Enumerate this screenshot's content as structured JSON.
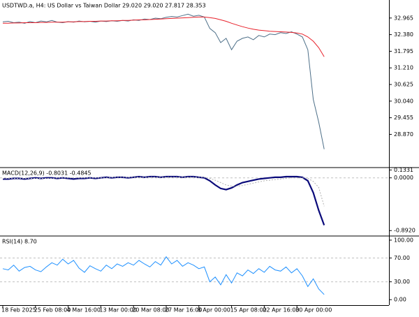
{
  "chart_data": [
    {
      "type": "line",
      "title": "USDTWD.a, H4:  US Dollar vs Taiwan Dollar  29.020 29.020 27.817 28.353",
      "ylim": [
        27.75,
        33.55
      ],
      "yticks": [
        32.965,
        {
          "value": 32.38,
          "label": "32.380"
        },
        31.795,
        {
          "value": 31.21,
          "label": "31.210"
        },
        30.625,
        {
          "value": 30.04,
          "label": "30.040"
        },
        29.455,
        {
          "value": 28.87,
          "label": "28.870"
        }
      ],
      "series": [
        {
          "color": "#4d6f88",
          "values": [
            32.83,
            32.85,
            32.8,
            32.82,
            32.78,
            32.84,
            32.8,
            32.86,
            32.83,
            32.88,
            32.82,
            32.8,
            32.84,
            32.82,
            32.86,
            32.83,
            32.85,
            32.82,
            32.86,
            32.84,
            32.87,
            32.85,
            32.88,
            32.86,
            32.9,
            32.88,
            32.93,
            32.91,
            32.96,
            32.94,
            32.99,
            33.02,
            33.0,
            33.05,
            33.1,
            33.03,
            33.06,
            33.0,
            32.6,
            32.45,
            32.1,
            32.25,
            31.85,
            32.15,
            32.25,
            32.3,
            32.2,
            32.35,
            32.3,
            32.4,
            32.38,
            32.45,
            32.42,
            32.48,
            32.4,
            32.3,
            31.85,
            30.1,
            29.3,
            28.35
          ]
        },
        {
          "color": "#e8202a",
          "values": [
            32.78,
            32.78,
            32.79,
            32.79,
            32.8,
            32.8,
            32.8,
            32.81,
            32.81,
            32.82,
            32.82,
            32.82,
            32.83,
            32.83,
            32.84,
            32.84,
            32.85,
            32.85,
            32.86,
            32.86,
            32.87,
            32.87,
            32.88,
            32.88,
            32.89,
            32.9,
            32.9,
            32.91,
            32.92,
            32.93,
            32.94,
            32.95,
            32.96,
            32.97,
            32.98,
            32.99,
            33.0,
            33.0,
            32.98,
            32.95,
            32.9,
            32.85,
            32.78,
            32.72,
            32.66,
            32.61,
            32.57,
            32.54,
            32.52,
            32.5,
            32.49,
            32.48,
            32.47,
            32.46,
            32.44,
            32.4,
            32.3,
            32.15,
            31.92,
            31.6
          ]
        }
      ]
    },
    {
      "type": "line",
      "title": "MACD(12,26,9) -0.8031 -0.4845",
      "ylim": [
        -0.96,
        0.15
      ],
      "yticks": [
        0.1331,
        {
          "value": 0,
          "label": "0.0000"
        },
        {
          "value": -0.892,
          "label": "-0.8920"
        }
      ],
      "levels": [
        0
      ],
      "series": [
        {
          "color": "#0a0a7a",
          "width": 2.2,
          "values": [
            -0.02,
            -0.02,
            -0.01,
            -0.01,
            -0.02,
            -0.01,
            0.0,
            -0.01,
            0.0,
            0.0,
            -0.01,
            0.0,
            -0.01,
            -0.02,
            -0.01,
            -0.01,
            0.0,
            -0.01,
            0.0,
            0.01,
            0.0,
            0.01,
            0.01,
            0.0,
            0.01,
            0.02,
            0.01,
            0.02,
            0.02,
            0.01,
            0.02,
            0.02,
            0.02,
            0.01,
            0.02,
            0.02,
            0.01,
            0.0,
            -0.05,
            -0.12,
            -0.18,
            -0.2,
            -0.17,
            -0.12,
            -0.08,
            -0.06,
            -0.04,
            -0.02,
            -0.01,
            0.0,
            0.01,
            0.01,
            0.02,
            0.02,
            0.02,
            0.01,
            -0.05,
            -0.25,
            -0.55,
            -0.8
          ]
        },
        {
          "color": "#b0b0b0",
          "style": "dotted",
          "values": [
            -0.01,
            -0.01,
            -0.01,
            -0.01,
            -0.01,
            -0.01,
            -0.01,
            -0.01,
            -0.01,
            -0.01,
            0.0,
            0.0,
            0.0,
            0.0,
            0.0,
            0.0,
            0.0,
            0.0,
            0.0,
            0.0,
            0.01,
            0.01,
            0.01,
            0.01,
            0.01,
            0.01,
            0.01,
            0.01,
            0.01,
            0.01,
            0.01,
            0.01,
            0.01,
            0.01,
            0.01,
            0.01,
            0.01,
            0.01,
            -0.01,
            -0.04,
            -0.08,
            -0.12,
            -0.14,
            -0.14,
            -0.13,
            -0.11,
            -0.09,
            -0.07,
            -0.05,
            -0.04,
            -0.03,
            -0.02,
            -0.01,
            0.0,
            0.0,
            0.0,
            -0.01,
            -0.06,
            -0.16,
            -0.48
          ]
        }
      ]
    },
    {
      "type": "line",
      "title": "RSI(14) 8.70",
      "ylim": [
        -8,
        104.6
      ],
      "yticks": [
        {
          "value": 100,
          "label": "100.00"
        },
        {
          "value": 70,
          "label": "70.00"
        },
        {
          "value": 30,
          "label": "30.00"
        },
        {
          "value": 0,
          "label": "0.00"
        }
      ],
      "levels": [
        70,
        30
      ],
      "categories": [
        "18 Feb 2025",
        null,
        null,
        null,
        null,
        null,
        "25 Feb 08:00",
        null,
        null,
        null,
        null,
        null,
        "4 Mar 16:00",
        null,
        null,
        null,
        null,
        null,
        "13 Mar 00:00",
        null,
        null,
        null,
        null,
        null,
        "20 Mar 08:00",
        null,
        null,
        null,
        null,
        null,
        "27 Mar 16:00",
        null,
        null,
        null,
        null,
        null,
        "8 Apr 00:00",
        null,
        null,
        null,
        null,
        null,
        "15 Apr 08:00",
        null,
        null,
        null,
        null,
        null,
        "22 Apr 16:00",
        null,
        null,
        null,
        null,
        null,
        "30 Apr 00:00",
        null,
        null,
        null,
        null,
        null
      ],
      "series": [
        {
          "color": "#1e90ff",
          "values": [
            52,
            50,
            58,
            48,
            54,
            56,
            50,
            47,
            55,
            62,
            58,
            68,
            60,
            66,
            53,
            46,
            57,
            52,
            48,
            58,
            52,
            60,
            56,
            62,
            58,
            66,
            60,
            55,
            64,
            58,
            72,
            60,
            66,
            56,
            62,
            58,
            52,
            55,
            30,
            38,
            25,
            42,
            28,
            45,
            40,
            50,
            44,
            52,
            46,
            56,
            50,
            48,
            55,
            45,
            52,
            40,
            22,
            35,
            18,
            8.7
          ]
        }
      ]
    }
  ]
}
